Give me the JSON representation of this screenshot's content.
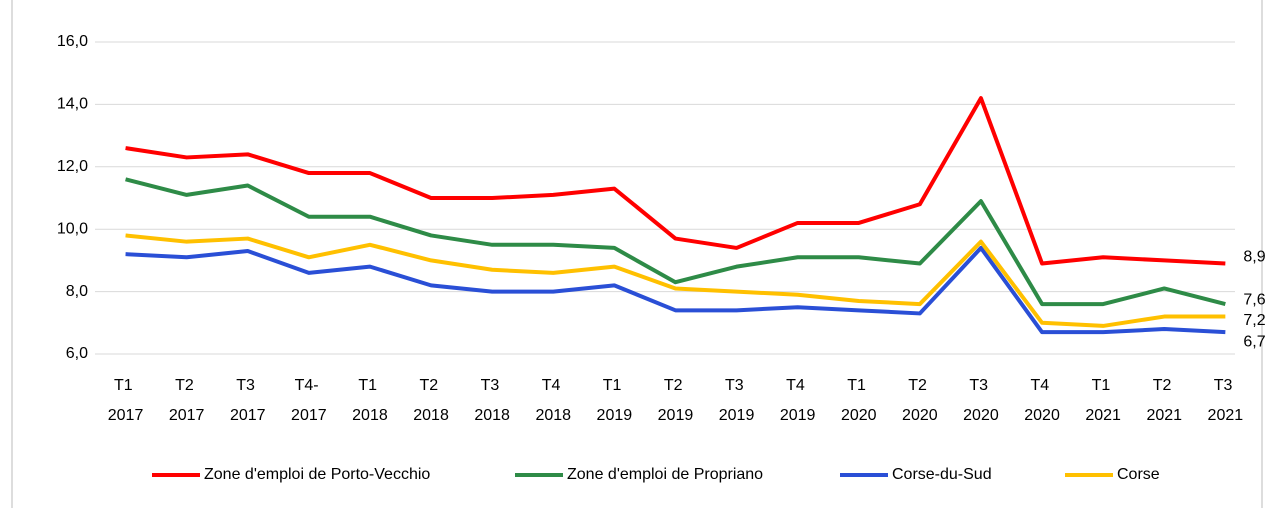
{
  "chart_data": {
    "type": "line",
    "categories": [
      "T1 2017",
      "T2 2017",
      "T3 2017",
      "T4- 2017",
      "T1 2018",
      "T2 2018",
      "T3 2018",
      "T4 2018",
      "T1 2019",
      "T2 2019",
      "T3 2019",
      "T4 2019",
      "T1 2020",
      "T2 2020",
      "T3 2020",
      "T4 2020",
      "T1 2021",
      "T2 2021",
      "T3 2021"
    ],
    "series": [
      {
        "name": "Zone d'emploi de Porto-Vecchio",
        "color": "#ff0000",
        "values": [
          12.6,
          12.3,
          12.4,
          11.8,
          11.8,
          11.0,
          11.0,
          11.1,
          11.3,
          9.7,
          9.4,
          10.2,
          10.2,
          10.8,
          14.2,
          8.9,
          9.1,
          9.0,
          8.9
        ],
        "end_label": "8,9"
      },
      {
        "name": "Zone d'emploi de Propriano",
        "color": "#2e8b47",
        "values": [
          11.6,
          11.1,
          11.4,
          10.4,
          10.4,
          9.8,
          9.5,
          9.5,
          9.4,
          8.3,
          8.8,
          9.1,
          9.1,
          8.9,
          10.9,
          7.6,
          7.6,
          8.1,
          7.6
        ],
        "end_label": "7,6"
      },
      {
        "name": "Corse-du-Sud",
        "color": "#2a4fd6",
        "values": [
          9.2,
          9.1,
          9.3,
          8.6,
          8.8,
          8.2,
          8.0,
          8.0,
          8.2,
          7.4,
          7.4,
          7.5,
          7.4,
          7.3,
          9.4,
          6.7,
          6.7,
          6.8,
          6.7
        ],
        "end_label": "6,7"
      },
      {
        "name": "Corse",
        "color": "#ffc000",
        "values": [
          9.8,
          9.6,
          9.7,
          9.1,
          9.5,
          9.0,
          8.7,
          8.6,
          8.8,
          8.1,
          8.0,
          7.9,
          7.7,
          7.6,
          9.6,
          7.0,
          6.9,
          7.2,
          7.2
        ],
        "end_label": "7,2"
      }
    ],
    "ylim": [
      6,
      16
    ],
    "yticks": [
      {
        "value": 6,
        "label": "6,0"
      },
      {
        "value": 8,
        "label": "8,0"
      },
      {
        "value": 10,
        "label": "10,0"
      },
      {
        "value": 12,
        "label": "12,0"
      },
      {
        "value": 14,
        "label": "14,0"
      },
      {
        "value": 16,
        "label": "16,0"
      }
    ],
    "grid": true
  }
}
